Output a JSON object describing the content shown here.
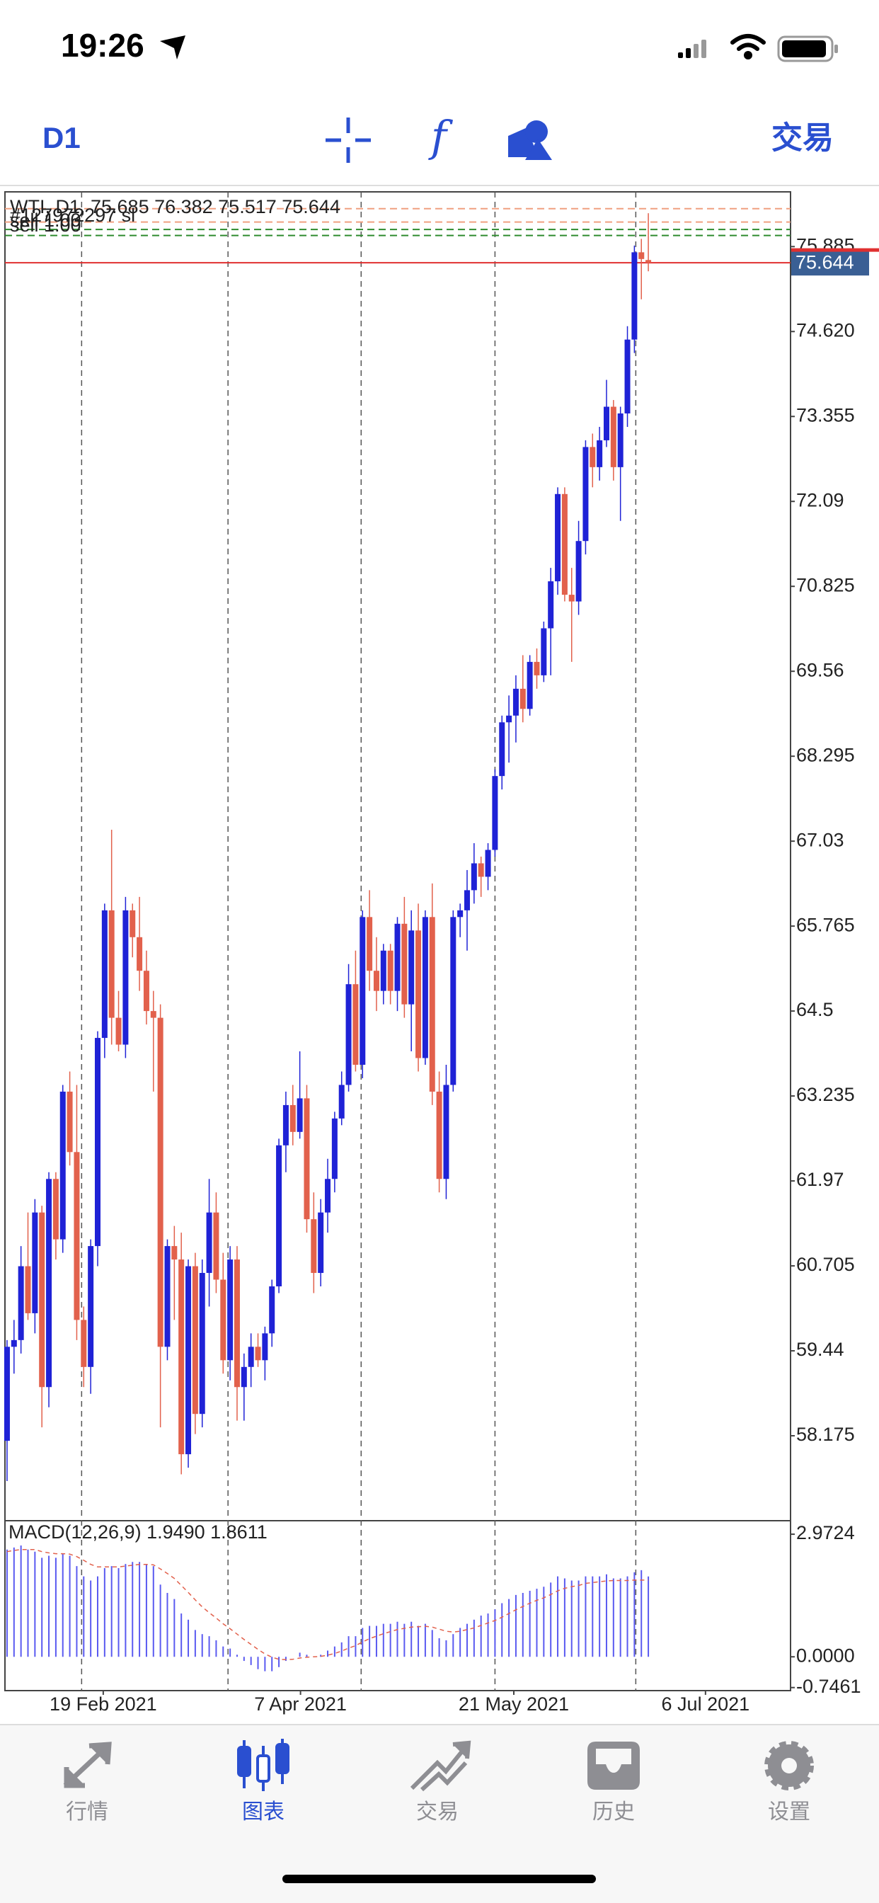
{
  "status_bar": {
    "time": "19:26"
  },
  "toolbar": {
    "timeframe": "D1",
    "function_label": "f",
    "trade": "交易"
  },
  "chart_data": {
    "type": "candlestick",
    "header": "WTI, D1, 75.685 76.382 75.517 75.644",
    "order_labels": [
      "#127972297 sl",
      "sell 1.00",
      "sell 1.00"
    ],
    "order_levels": [
      {
        "price": 76.45,
        "color": "#f0a080"
      },
      {
        "price": 76.25,
        "color": "#f0a080"
      },
      {
        "price": 76.14,
        "color": "#2e8b2e"
      },
      {
        "price": 76.05,
        "color": "#2e8b2e"
      }
    ],
    "bid": 75.644,
    "bid_color": "#e03030",
    "tag_color": "#3a5f94",
    "up_color": "#1f22d6",
    "down_color": "#e2614c",
    "xlim": [
      -0.3,
      112.4
    ],
    "xticks": [
      {
        "value": 13.8,
        "label": "19 Feb 2021"
      },
      {
        "value": 42.1,
        "label": "7 Apr 2021"
      },
      {
        "value": 72.7,
        "label": "21 May 2021"
      },
      {
        "value": 100.2,
        "label": "6 Jul 2021"
      }
    ],
    "separators": [
      10.7,
      31.7,
      50.8,
      70,
      90.2
    ],
    "ylim": [
      56.91,
      76.7
    ],
    "yticks": [
      {
        "value": 75.885,
        "label": "75.885"
      },
      {
        "value": 74.62,
        "label": "74.620"
      },
      73.355,
      72.09,
      70.825,
      69.56,
      68.295,
      67.03,
      65.765,
      64.5,
      63.235,
      61.97,
      60.705,
      59.44,
      58.175
    ],
    "open": [
      58.1,
      59.5,
      59.6,
      60.7,
      60.0,
      61.5,
      58.9,
      62.0,
      61.1,
      63.3,
      62.4,
      59.9,
      59.2,
      61.0,
      64.1,
      66.0,
      64.4,
      64.0,
      66.0,
      65.6,
      65.1,
      64.5,
      64.4,
      59.5,
      61.0,
      60.8,
      57.9,
      60.7,
      58.5,
      60.6,
      61.5,
      60.5,
      59.3,
      60.8,
      58.9,
      59.2,
      59.5,
      59.3,
      59.7,
      60.4,
      62.5,
      63.1,
      62.7,
      63.2,
      61.4,
      60.6,
      61.5,
      62.0,
      62.9,
      63.4,
      64.9,
      63.7,
      65.9,
      65.1,
      64.8,
      65.4,
      64.8,
      65.8,
      64.6,
      65.7,
      63.8,
      65.9,
      63.3,
      62.0,
      63.4,
      65.9,
      66.0,
      66.3,
      66.7,
      66.5,
      66.9,
      68.0,
      68.8,
      68.9,
      69.3,
      69.0,
      69.7,
      69.5,
      70.2,
      70.9,
      72.2,
      70.7,
      70.6,
      71.5,
      72.9,
      72.6,
      73.0,
      73.5,
      72.6,
      73.4,
      74.5,
      75.8,
      75.685
    ],
    "high": [
      59.6,
      59.9,
      61.0,
      61.5,
      61.7,
      61.6,
      62.1,
      62.1,
      63.4,
      63.6,
      63.4,
      60.1,
      61.1,
      64.2,
      66.1,
      67.2,
      64.8,
      66.2,
      66.1,
      66.2,
      65.4,
      64.8,
      64.6,
      61.1,
      61.3,
      61.2,
      60.8,
      60.9,
      60.8,
      62.0,
      61.8,
      60.9,
      61.0,
      61.0,
      59.4,
      59.7,
      59.7,
      59.8,
      60.5,
      62.6,
      63.3,
      63.4,
      63.9,
      63.4,
      61.8,
      61.7,
      62.3,
      63.0,
      63.6,
      65.2,
      65.4,
      66.0,
      66.3,
      65.6,
      65.5,
      65.5,
      65.9,
      66.2,
      66.0,
      66.1,
      66.0,
      66.4,
      63.6,
      63.7,
      66.0,
      66.1,
      66.6,
      67.0,
      66.8,
      67.0,
      68.1,
      68.9,
      69.2,
      69.5,
      69.8,
      69.8,
      69.9,
      70.3,
      71.1,
      72.3,
      72.3,
      71.1,
      71.8,
      73.0,
      73.1,
      73.2,
      73.9,
      73.6,
      73.5,
      74.7,
      75.9,
      76.0,
      76.382
    ],
    "low": [
      57.5,
      59.1,
      59.4,
      59.9,
      59.7,
      58.3,
      58.6,
      60.8,
      60.9,
      62.2,
      59.6,
      58.9,
      58.8,
      60.7,
      63.8,
      64.0,
      63.9,
      63.8,
      65.3,
      64.8,
      64.3,
      63.3,
      58.3,
      59.3,
      59.9,
      57.6,
      57.7,
      58.2,
      58.3,
      60.1,
      60.3,
      59.1,
      59.0,
      58.4,
      58.4,
      58.9,
      59.2,
      59.0,
      59.5,
      60.3,
      62.1,
      62.5,
      62.6,
      61.2,
      60.3,
      60.4,
      61.2,
      61.8,
      62.8,
      63.3,
      63.6,
      63.5,
      64.8,
      64.5,
      64.6,
      64.6,
      64.5,
      64.4,
      63.9,
      63.6,
      63.7,
      63.1,
      61.8,
      61.7,
      63.3,
      65.6,
      65.4,
      66.1,
      66.2,
      66.3,
      66.8,
      67.8,
      68.2,
      68.5,
      68.8,
      68.9,
      69.3,
      69.4,
      69.5,
      70.7,
      70.6,
      69.7,
      70.4,
      71.3,
      72.3,
      72.4,
      72.9,
      72.4,
      71.8,
      73.2,
      74.3,
      75.1,
      75.517
    ],
    "close": [
      59.5,
      59.6,
      60.7,
      60.0,
      61.5,
      58.9,
      62.0,
      61.1,
      63.3,
      62.4,
      59.9,
      59.2,
      61.0,
      64.1,
      66.0,
      64.4,
      64.0,
      66.0,
      65.6,
      65.1,
      64.5,
      64.4,
      59.5,
      61.0,
      60.8,
      57.9,
      60.7,
      58.5,
      60.6,
      61.5,
      60.5,
      59.3,
      60.8,
      58.9,
      59.2,
      59.5,
      59.3,
      59.7,
      60.4,
      62.5,
      63.1,
      62.7,
      63.2,
      61.4,
      60.6,
      61.5,
      62.0,
      62.9,
      63.4,
      64.9,
      63.7,
      65.9,
      65.1,
      64.8,
      65.4,
      64.8,
      65.8,
      64.6,
      65.7,
      63.8,
      65.9,
      63.3,
      62.0,
      63.4,
      65.9,
      66.0,
      66.3,
      66.7,
      66.5,
      66.9,
      68.0,
      68.8,
      68.9,
      69.3,
      69.0,
      69.7,
      69.5,
      70.2,
      70.9,
      72.2,
      70.7,
      70.6,
      71.5,
      72.9,
      72.6,
      73.0,
      73.5,
      72.6,
      73.4,
      74.5,
      75.8,
      75.7,
      75.644
    ],
    "macd": {
      "label": "MACD(12,26,9) 1.9490 1.8611",
      "color": "#5a5af0",
      "signal_color": "#e2614c",
      "ylim": [
        -0.82,
        3.3
      ],
      "yticks": [
        {
          "value": 2.9724,
          "label": "2.9724"
        },
        {
          "value": 0,
          "label": "0.0000"
        },
        {
          "value": -0.7461,
          "label": "-0.7461"
        }
      ],
      "values": [
        2.6,
        2.65,
        2.7,
        2.6,
        2.55,
        2.4,
        2.45,
        2.4,
        2.5,
        2.45,
        2.2,
        1.95,
        1.85,
        1.95,
        2.15,
        2.2,
        2.15,
        2.25,
        2.3,
        2.3,
        2.25,
        2.2,
        1.75,
        1.55,
        1.4,
        1.05,
        0.9,
        0.65,
        0.55,
        0.5,
        0.4,
        0.25,
        0.2,
        0.05,
        -0.1,
        -0.2,
        -0.3,
        -0.35,
        -0.35,
        -0.25,
        -0.1,
        0.0,
        0.1,
        0.05,
        0.0,
        0.05,
        0.15,
        0.25,
        0.35,
        0.5,
        0.5,
        0.7,
        0.75,
        0.75,
        0.8,
        0.8,
        0.85,
        0.8,
        0.85,
        0.75,
        0.8,
        0.65,
        0.45,
        0.4,
        0.55,
        0.7,
        0.8,
        0.9,
        1.0,
        1.05,
        1.15,
        1.3,
        1.4,
        1.5,
        1.55,
        1.6,
        1.65,
        1.7,
        1.8,
        1.95,
        1.9,
        1.85,
        1.85,
        1.95,
        1.95,
        1.95,
        2.0,
        1.9,
        1.9,
        1.95,
        2.05,
        2.1,
        1.949
      ],
      "signal": [
        2.55,
        2.58,
        2.6,
        2.6,
        2.6,
        2.55,
        2.52,
        2.5,
        2.5,
        2.49,
        2.43,
        2.34,
        2.24,
        2.18,
        2.18,
        2.18,
        2.18,
        2.2,
        2.22,
        2.24,
        2.24,
        2.23,
        2.13,
        2.02,
        1.9,
        1.73,
        1.56,
        1.38,
        1.21,
        1.07,
        0.94,
        0.8,
        0.68,
        0.55,
        0.42,
        0.3,
        0.18,
        0.07,
        -0.01,
        -0.06,
        -0.07,
        -0.06,
        -0.03,
        -0.01,
        0.0,
        0.01,
        0.04,
        0.08,
        0.14,
        0.21,
        0.27,
        0.36,
        0.44,
        0.5,
        0.56,
        0.61,
        0.66,
        0.69,
        0.72,
        0.73,
        0.74,
        0.72,
        0.67,
        0.62,
        0.6,
        0.62,
        0.66,
        0.7,
        0.76,
        0.82,
        0.88,
        0.96,
        1.05,
        1.14,
        1.22,
        1.3,
        1.37,
        1.43,
        1.51,
        1.6,
        1.66,
        1.7,
        1.73,
        1.78,
        1.8,
        1.82,
        1.84,
        1.85,
        1.85,
        1.85,
        1.86,
        1.86,
        1.8611
      ]
    }
  },
  "tab_bar": {
    "tabs": [
      "行情",
      "图表",
      "交易",
      "历史",
      "设置"
    ]
  }
}
